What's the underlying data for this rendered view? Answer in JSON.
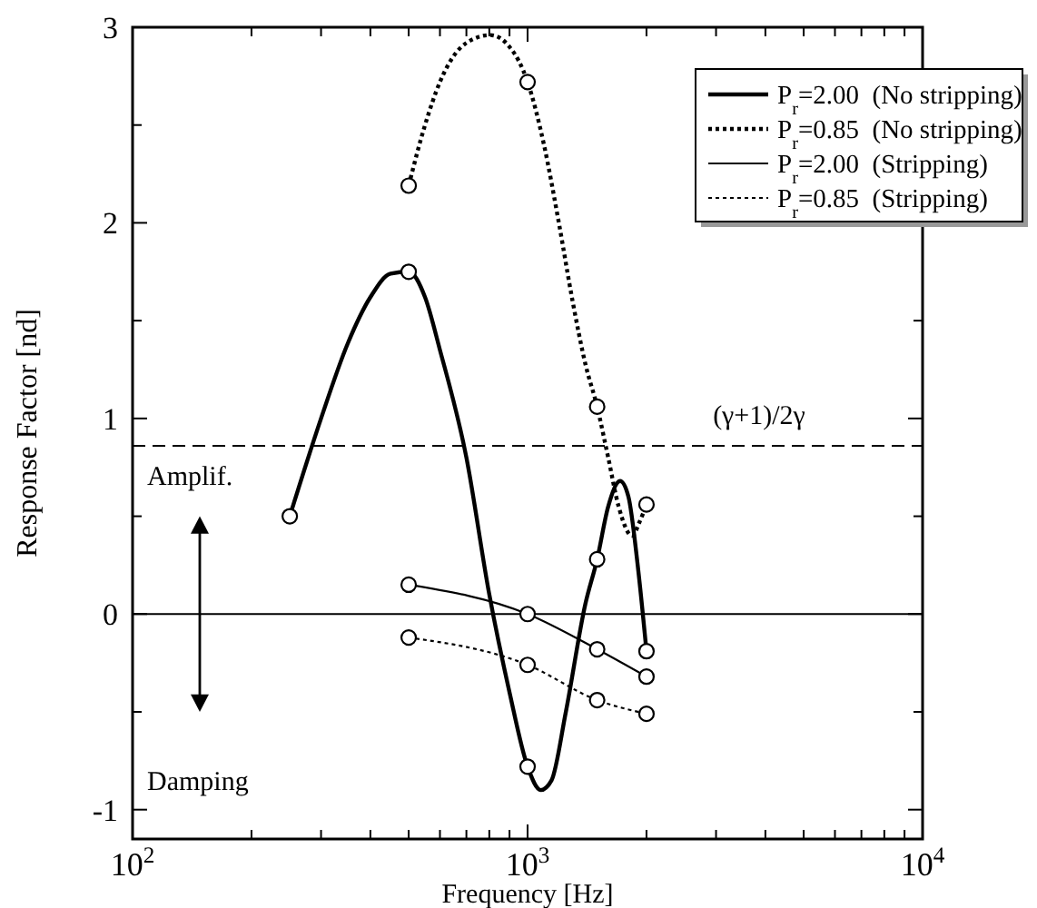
{
  "chart_data": {
    "type": "line",
    "xlabel": "Frequency [Hz]",
    "ylabel": "Response Factor [nd]",
    "log": "x",
    "xlim": [
      100,
      10000
    ],
    "ylim": [
      -1.15,
      3
    ],
    "xticks": [
      {
        "value": 100,
        "label": "10$^{2}$"
      },
      {
        "value": 200,
        "label": null
      },
      {
        "value": 300,
        "label": null
      },
      {
        "value": 400,
        "label": null
      },
      {
        "value": 500,
        "label": null
      },
      {
        "value": 600,
        "label": null
      },
      {
        "value": 700,
        "label": null
      },
      {
        "value": 800,
        "label": null
      },
      {
        "value": 900,
        "label": null
      },
      {
        "value": 1000,
        "label": "10$^{3}$"
      },
      {
        "value": 2000,
        "label": null
      },
      {
        "value": 3000,
        "label": null
      },
      {
        "value": 4000,
        "label": null
      },
      {
        "value": 5000,
        "label": null
      },
      {
        "value": 6000,
        "label": null
      },
      {
        "value": 7000,
        "label": null
      },
      {
        "value": 8000,
        "label": null
      },
      {
        "value": 9000,
        "label": null
      },
      {
        "value": 10000,
        "label": "10$^{4}$"
      }
    ],
    "yticks": [
      -1,
      {
        "value": -0.5,
        "label": null
      },
      0,
      {
        "value": 0.5,
        "label": null
      },
      1,
      {
        "value": 1.5,
        "label": null
      },
      2,
      {
        "value": 2.5,
        "label": null
      },
      3
    ],
    "legend": "top right",
    "grid": false,
    "series": [
      {
        "name": "P$_{r}$=2.00  (No stripping)",
        "color": "#000000",
        "line_style": "solid",
        "marker": "none",
        "x": [
          250,
          300,
          350,
          400,
          450,
          500,
          550,
          600,
          700,
          800,
          900,
          1000,
          1080,
          1150,
          1250,
          1400,
          1500,
          1600,
          1715,
          1800,
          1900,
          2000
        ],
        "values": [
          0.5,
          1.0,
          1.38,
          1.62,
          1.74,
          1.75,
          1.62,
          1.35,
          0.8,
          0.1,
          -0.4,
          -0.78,
          -0.9,
          -0.85,
          -0.5,
          0.05,
          0.28,
          0.55,
          0.68,
          0.6,
          0.25,
          -0.19
        ]
      },
      {
        "name": "P$_{r}$=0.85  (No stripping)",
        "color": "#000000",
        "line_style": "dotted",
        "marker": "none",
        "x": [
          500,
          550,
          600,
          700,
          805,
          900,
          1000,
          1100,
          1200,
          1300,
          1400,
          1500,
          1600,
          1700,
          1840,
          1920,
          2000
        ],
        "values": [
          2.19,
          2.5,
          2.72,
          2.92,
          2.96,
          2.9,
          2.72,
          2.4,
          2.0,
          1.6,
          1.28,
          1.06,
          0.8,
          0.55,
          0.4,
          0.47,
          0.56
        ]
      },
      {
        "name": "P$_{r}$=2.00  (Stripping)",
        "color": "#000000",
        "line_style": "solid",
        "marker": "circle",
        "x": [
          500,
          1000,
          1500,
          2000
        ],
        "values": [
          0.15,
          0.0,
          -0.18,
          -0.32
        ]
      },
      {
        "name": "P$_{r}$=0.85  (Stripping)",
        "color": "#000000",
        "line_style": "dotted",
        "marker": "circle",
        "x": [
          500,
          1000,
          1500,
          2000
        ],
        "values": [
          -0.12,
          -0.26,
          -0.44,
          -0.51
        ]
      },
      {
        "type": "scatter",
        "color": "#000000",
        "marker": "circle",
        "x": [
          250,
          500,
          1000,
          1500,
          2000
        ],
        "values": [
          0.5,
          1.75,
          -0.78,
          0.28,
          -0.19
        ]
      },
      {
        "type": "scatter",
        "color": "#000000",
        "marker": "circle",
        "x": [
          500,
          1000,
          1500,
          2000
        ],
        "values": [
          2.19,
          2.72,
          1.06,
          0.56
        ]
      }
    ],
    "ref_lines": [
      {
        "axis": "y",
        "value": 0.86,
        "label": "(γ+1)/2γ",
        "line_style": "dashed"
      },
      {
        "axis": "y",
        "value": 0,
        "line_style": "solid"
      }
    ],
    "annotations": [
      "Amplif.",
      "Damping"
    ]
  }
}
